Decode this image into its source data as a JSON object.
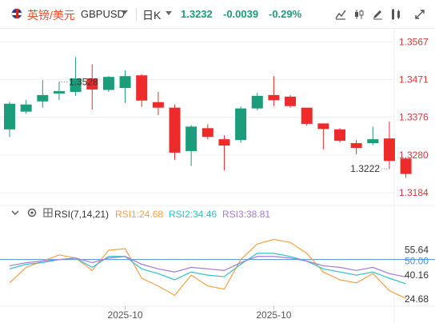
{
  "header": {
    "pair_cn": "英镑/美元",
    "symbol": "GBPUSD",
    "period": "日K",
    "price": "1.3232",
    "change": "-0.0039",
    "change_pct": "-0.29%",
    "icons": [
      "area-chart-icon",
      "candlestick-icon",
      "draw-icon",
      "indicator-icon",
      "fullscreen-icon"
    ]
  },
  "rsi_legend": {
    "name": "RSI(7,14,21)",
    "rsi1": "RSI1:24.68",
    "rsi2": "RSI2:34.46",
    "rsi3": "RSI3:38.81"
  },
  "colors": {
    "up": "#1b9c7a",
    "down": "#ee2b2b",
    "rsi1": "#f5a14a",
    "rsi2": "#2ec3c9",
    "rsi3": "#a47ad6",
    "ref_line": "#4d8fe0"
  },
  "chart_data": [
    {
      "type": "candlestick",
      "price_ticks": [
        "1.3567",
        "1.3471",
        "1.3376",
        "1.3280",
        "1.3184"
      ],
      "ylim": [
        1.315,
        1.36
      ],
      "annotations": [
        {
          "label": "1.3528",
          "index": 3,
          "kind": "high"
        },
        {
          "label": "1.3222",
          "index": 23,
          "kind": "low"
        }
      ],
      "candles": [
        {
          "o": 1.3345,
          "h": 1.3415,
          "l": 1.3325,
          "c": 1.341
        },
        {
          "o": 1.339,
          "h": 1.342,
          "l": 1.3385,
          "c": 1.3408
        },
        {
          "o": 1.3416,
          "h": 1.347,
          "l": 1.34,
          "c": 1.3432
        },
        {
          "o": 1.3436,
          "h": 1.3465,
          "l": 1.342,
          "c": 1.3442
        },
        {
          "o": 1.344,
          "h": 1.3528,
          "l": 1.343,
          "c": 1.3474
        },
        {
          "o": 1.3474,
          "h": 1.351,
          "l": 1.3395,
          "c": 1.3446
        },
        {
          "o": 1.3445,
          "h": 1.348,
          "l": 1.344,
          "c": 1.3478
        },
        {
          "o": 1.345,
          "h": 1.3495,
          "l": 1.3412,
          "c": 1.348
        },
        {
          "o": 1.3482,
          "h": 1.3485,
          "l": 1.3402,
          "c": 1.3418
        },
        {
          "o": 1.3414,
          "h": 1.344,
          "l": 1.3381,
          "c": 1.34
        },
        {
          "o": 1.34,
          "h": 1.3408,
          "l": 1.3268,
          "c": 1.3286
        },
        {
          "o": 1.329,
          "h": 1.3356,
          "l": 1.3252,
          "c": 1.3352
        },
        {
          "o": 1.3348,
          "h": 1.3358,
          "l": 1.332,
          "c": 1.3326
        },
        {
          "o": 1.332,
          "h": 1.333,
          "l": 1.3241,
          "c": 1.3304
        },
        {
          "o": 1.3318,
          "h": 1.3403,
          "l": 1.3311,
          "c": 1.3398
        },
        {
          "o": 1.3398,
          "h": 1.3437,
          "l": 1.3393,
          "c": 1.343
        },
        {
          "o": 1.3432,
          "h": 1.348,
          "l": 1.3404,
          "c": 1.3419
        },
        {
          "o": 1.3428,
          "h": 1.3432,
          "l": 1.34,
          "c": 1.3404
        },
        {
          "o": 1.34,
          "h": 1.34,
          "l": 1.3354,
          "c": 1.3359
        },
        {
          "o": 1.336,
          "h": 1.336,
          "l": 1.3294,
          "c": 1.3346
        },
        {
          "o": 1.3345,
          "h": 1.3348,
          "l": 1.3312,
          "c": 1.3316
        },
        {
          "o": 1.331,
          "h": 1.3318,
          "l": 1.3282,
          "c": 1.3298
        },
        {
          "o": 1.331,
          "h": 1.3352,
          "l": 1.3305,
          "c": 1.332
        },
        {
          "o": 1.3322,
          "h": 1.3365,
          "l": 1.3245,
          "c": 1.3265
        },
        {
          "o": 1.3271,
          "h": 1.3274,
          "l": 1.3222,
          "c": 1.3232
        }
      ]
    },
    {
      "type": "line",
      "title": "RSI(7,14,21)",
      "ylim": [
        20,
        74
      ],
      "y_ticks": [
        "55.64",
        "50.00",
        "40.16",
        "24.68"
      ],
      "reference_line": 50,
      "x_ticks": [
        {
          "label": "2025-10",
          "index": 7
        },
        {
          "label": "2025-10",
          "index": 16
        }
      ],
      "series": [
        {
          "name": "RSI1",
          "values": [
            35,
            45,
            49,
            53,
            51,
            43,
            56,
            57,
            38,
            33,
            27,
            40,
            33,
            31,
            50,
            60,
            63,
            61,
            54,
            42,
            37,
            35,
            41,
            30,
            25
          ]
        },
        {
          "name": "RSI2",
          "values": [
            44,
            47,
            48,
            50,
            51,
            45,
            52,
            52,
            44,
            41,
            37,
            42,
            40,
            39,
            47,
            54,
            54,
            52,
            49,
            44,
            42,
            40,
            42,
            38,
            34.46
          ]
        },
        {
          "name": "RSI3",
          "values": [
            46,
            48,
            49,
            50,
            51,
            48,
            51,
            52,
            47,
            44,
            42,
            45,
            44,
            43,
            48,
            52,
            52,
            51,
            49,
            46,
            45,
            43,
            45,
            41,
            38.81
          ]
        }
      ]
    }
  ]
}
